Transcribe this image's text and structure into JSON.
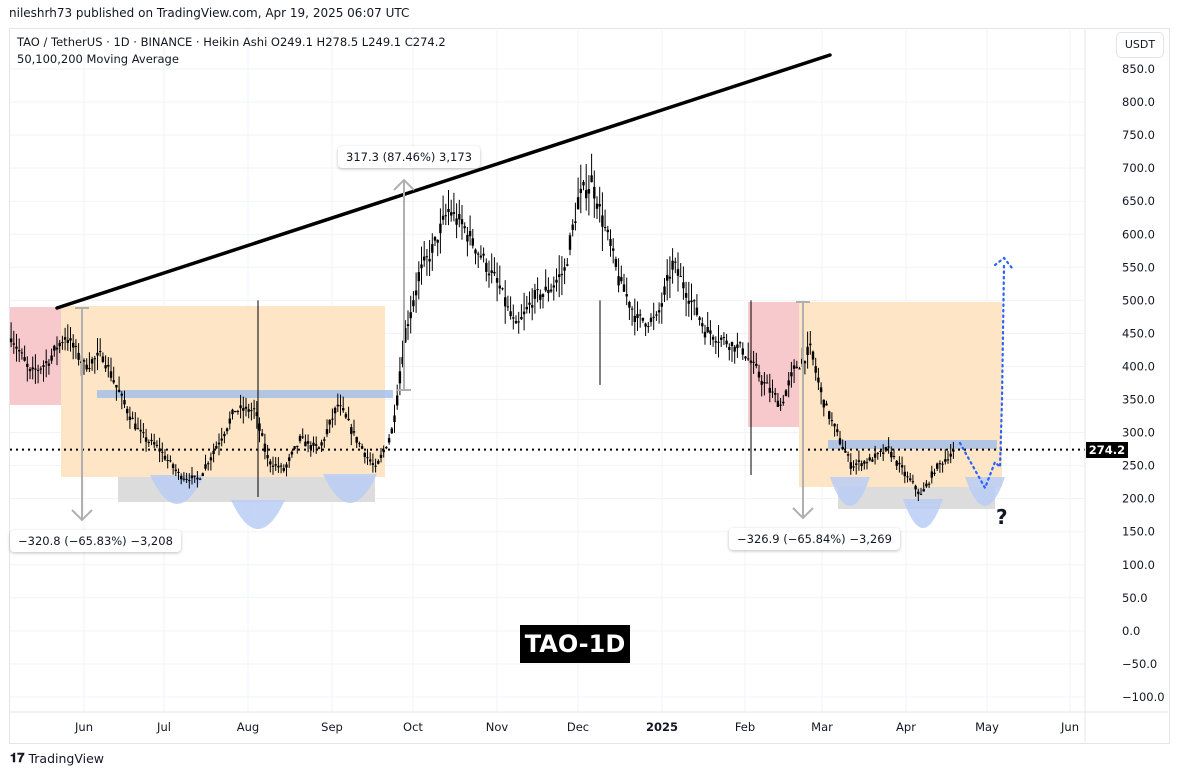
{
  "publisher": "nileshrh73 published on TradingView.com, Apr 19, 2025 06:07 UTC",
  "legend": {
    "line1": "TAO / TetherUS · 1D · BINANCE · Heikin Ashi  O249.1  H278.5  L249.1  C274.2",
    "line2": "50,100,200 Moving Average"
  },
  "currency": "USDT",
  "last_price": "274.2",
  "title_box": "TAO-1D",
  "measures": {
    "left_drop": "−320.8 (−65.83%) −3,208",
    "rise": "317.3 (87.46%) 3,173",
    "right_drop": "−326.9 (−65.84%) −3,269"
  },
  "question_mark": "?",
  "brand": "TradingView",
  "colors": {
    "candle": "#000000",
    "red_zone": "#f7c8cc",
    "orange_zone": "#fde5c6",
    "blue_band": "#9fbde8",
    "gray_zone": "#dcdcdc",
    "arc_fill": "#b9ccf5",
    "projection": "#2962ff"
  },
  "chart_data": {
    "type": "candlestick",
    "title": "TAO / TetherUS · 1D · BINANCE · Heikin Ashi",
    "ylabel": "USDT",
    "ylim": [
      -125,
      875
    ],
    "yticks": [
      "850.0",
      "800.0",
      "750.0",
      "700.0",
      "650.0",
      "600.0",
      "550.0",
      "500.0",
      "450.0",
      "400.0",
      "350.0",
      "300.0",
      "250.0",
      "200.0",
      "150.0",
      "100.0",
      "50.0",
      "0.0",
      "−50.0",
      "−100.0"
    ],
    "xticks": [
      "Jun",
      "Jul",
      "Aug",
      "Sep",
      "Oct",
      "Nov",
      "Dec",
      "2025",
      "Feb",
      "Mar",
      "Apr",
      "May",
      "Jun"
    ],
    "grid": true,
    "approx_closes": [
      [
        "2024-05-05",
        448
      ],
      [
        "2024-05-12",
        387
      ],
      [
        "2024-05-19",
        410
      ],
      [
        "2024-05-25",
        448
      ],
      [
        "2024-06-01",
        402
      ],
      [
        "2024-06-08",
        417
      ],
      [
        "2024-06-15",
        349
      ],
      [
        "2024-06-22",
        296
      ],
      [
        "2024-06-29",
        274
      ],
      [
        "2024-07-06",
        236
      ],
      [
        "2024-07-13",
        228
      ],
      [
        "2024-07-20",
        281
      ],
      [
        "2024-07-27",
        334
      ],
      [
        "2024-08-03",
        334
      ],
      [
        "2024-08-08",
        258
      ],
      [
        "2024-08-14",
        243
      ],
      [
        "2024-08-20",
        289
      ],
      [
        "2024-08-27",
        274
      ],
      [
        "2024-09-03",
        342
      ],
      [
        "2024-09-10",
        289
      ],
      [
        "2024-09-17",
        243
      ],
      [
        "2024-09-23",
        304
      ],
      [
        "2024-09-28",
        455
      ],
      [
        "2024-10-03",
        538
      ],
      [
        "2024-10-08",
        576
      ],
      [
        "2024-10-14",
        637
      ],
      [
        "2024-10-20",
        607
      ],
      [
        "2024-10-27",
        561
      ],
      [
        "2024-11-02",
        516
      ],
      [
        "2024-11-08",
        455
      ],
      [
        "2024-11-14",
        501
      ],
      [
        "2024-11-20",
        516
      ],
      [
        "2024-11-26",
        546
      ],
      [
        "2024-12-01",
        652
      ],
      [
        "2024-12-06",
        682
      ],
      [
        "2024-12-10",
        622
      ],
      [
        "2024-12-16",
        531
      ],
      [
        "2024-12-23",
        470
      ],
      [
        "2024-12-30",
        470
      ],
      [
        "2025-01-05",
        554
      ],
      [
        "2025-01-10",
        516
      ],
      [
        "2025-01-17",
        455
      ],
      [
        "2025-01-24",
        440
      ],
      [
        "2025-01-31",
        425
      ],
      [
        "2025-02-07",
        379
      ],
      [
        "2025-02-14",
        342
      ],
      [
        "2025-02-19",
        395
      ],
      [
        "2025-02-25",
        425
      ],
      [
        "2025-03-01",
        357
      ],
      [
        "2025-03-06",
        304
      ],
      [
        "2025-03-12",
        251
      ],
      [
        "2025-03-19",
        258
      ],
      [
        "2025-03-26",
        274
      ],
      [
        "2025-04-01",
        236
      ],
      [
        "2025-04-07",
        205
      ],
      [
        "2025-04-12",
        243
      ],
      [
        "2025-04-19",
        274.2
      ]
    ],
    "trendline": [
      [
        "2024-05-24",
        490
      ],
      [
        "2025-02-28",
        870
      ]
    ],
    "last_price": 274.2
  }
}
